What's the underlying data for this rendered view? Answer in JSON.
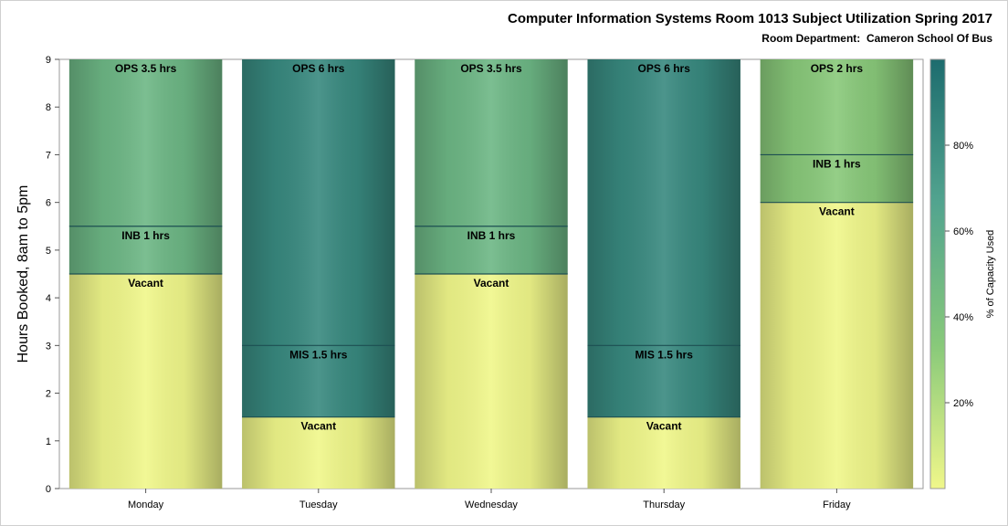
{
  "chart_data": {
    "type": "bar",
    "stacked": true,
    "title": "Computer Information Systems Room 1013 Subject Utilization Spring 2017",
    "subtitle": "Room Department:  Cameron School Of Bus",
    "ylabel": "Hours Booked, 8am to 5pm",
    "xlabel": "",
    "ylim": [
      0,
      9
    ],
    "yticks": [
      0,
      1,
      2,
      3,
      4,
      5,
      6,
      7,
      8,
      9
    ],
    "categories": [
      "Monday",
      "Tuesday",
      "Wednesday",
      "Thursday",
      "Friday"
    ],
    "stacks": [
      [
        {
          "label": "Vacant",
          "value": 4.5,
          "pct": 0
        },
        {
          "label": "INB 1 hrs",
          "value": 1,
          "pct": 50
        },
        {
          "label": "OPS 3.5 hrs",
          "value": 3.5,
          "pct": 50
        }
      ],
      [
        {
          "label": "Vacant",
          "value": 1.5,
          "pct": 0
        },
        {
          "label": "MIS 1.5 hrs",
          "value": 1.5,
          "pct": 83
        },
        {
          "label": "OPS 6 hrs",
          "value": 6,
          "pct": 83
        }
      ],
      [
        {
          "label": "Vacant",
          "value": 4.5,
          "pct": 0
        },
        {
          "label": "INB 1 hrs",
          "value": 1,
          "pct": 50
        },
        {
          "label": "OPS 3.5 hrs",
          "value": 3.5,
          "pct": 50
        }
      ],
      [
        {
          "label": "Vacant",
          "value": 1.5,
          "pct": 0
        },
        {
          "label": "MIS 1.5 hrs",
          "value": 1.5,
          "pct": 83
        },
        {
          "label": "OPS 6 hrs",
          "value": 6,
          "pct": 83
        }
      ],
      [
        {
          "label": "Vacant",
          "value": 6,
          "pct": 0
        },
        {
          "label": "INB 1 hrs",
          "value": 1,
          "pct": 33
        },
        {
          "label": "OPS 2 hrs",
          "value": 2,
          "pct": 33
        }
      ]
    ],
    "colorbar": {
      "label": "% of Capacity Used",
      "range": [
        0,
        100
      ],
      "ticks": [
        20,
        40,
        60,
        80
      ],
      "tick_labels": [
        "20%",
        "40%",
        "60%",
        "80%"
      ],
      "colors": [
        "#f0f78a",
        "#88c97a",
        "#52a48f",
        "#1d6c6e"
      ]
    },
    "legend": "right",
    "grid": false
  }
}
